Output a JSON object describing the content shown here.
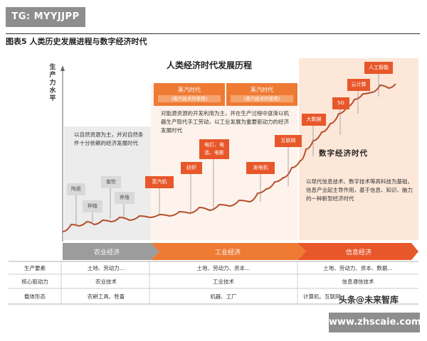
{
  "header": {
    "tag": "TG: MYYJJPP",
    "figure_label": "图表5    人类历史发展进程与数字经济时代"
  },
  "diagram": {
    "title": "人类经济时代发展历程",
    "y_axis_label": "生产力水平",
    "eras": [
      {
        "name": "农业经济"
      },
      {
        "name": "工业经济"
      },
      {
        "name": "信息经济"
      }
    ],
    "industrial_phases": [
      {
        "title": "蒸汽时代",
        "sub": "(蒸汽技术的使用)"
      },
      {
        "title": "蒸汽时代",
        "sub": "(蒸汽技术的使用)"
      }
    ],
    "descriptions": {
      "agri": "以自然资源为主，并对自然条件十分依赖的经济发展时代",
      "industrial": "对能源资源的开发利用为主，并在生产过程中逐渐以机器生产取代手工劳动，以工业发展为重要驱动力的经济发展时代",
      "info": "以现代信息技术、数字技术等高科技为基础，信息产业起主导作用，基于信息、知识、脑力的一种新型经济时代"
    },
    "digital_label": "数字经济时代",
    "agri_milestones": [
      "陶瓷",
      "种植",
      "畜牧",
      "养殖"
    ],
    "industrial_milestones": [
      "蒸汽机",
      "纺织",
      "电灯、电话、电影",
      "发电机",
      "互联网"
    ],
    "info_milestones": [
      "大数据",
      "5G",
      "云计算",
      "人工智能"
    ],
    "table": {
      "row_labels": [
        "生产要素",
        "核心驱动力",
        "载体形态"
      ],
      "rows": [
        [
          "土地、劳动力…",
          "土地、劳动力、资本…",
          "土地、劳动力、资本、数据…"
        ],
        [
          "农业技术",
          "工业技术",
          "信息通信技术"
        ],
        [
          "农耕工具、牲畜",
          "机器、工厂",
          "计算机、互联网"
        ]
      ]
    }
  },
  "watermarks": {
    "toutiao": "头条@未来智库",
    "site": "www.zhscaie.com"
  },
  "colors": {
    "accent": "#ee7a34",
    "deep": "#e8572a",
    "grey_bg": "#ececec",
    "light_orange_bg": "#fde7d9",
    "curve": "#b5502d"
  }
}
